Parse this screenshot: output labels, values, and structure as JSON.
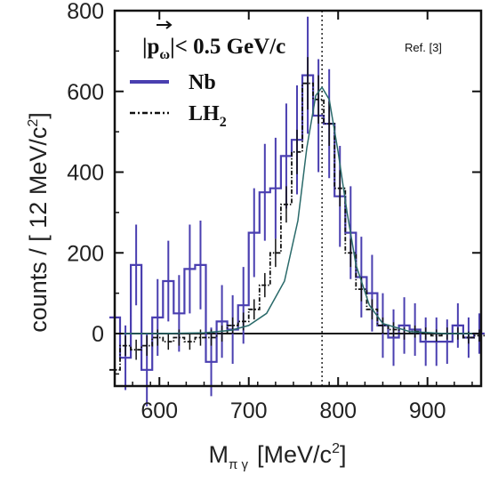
{
  "chart_data": {
    "type": "line",
    "xlabel": "M",
    "xlabel_sub": "π γ",
    "xlabel_unit_pre": "[MeV/c",
    "xlabel_unit_sup": "2",
    "xlabel_unit_post": "]",
    "ylabel": "counts / [ 12 MeV/c",
    "ylabel_sup": "2",
    "ylabel_post": "]",
    "xlim": [
      550,
      960
    ],
    "ylim": [
      -130,
      800
    ],
    "xticks": [
      600,
      700,
      800,
      900
    ],
    "yticks": [
      0,
      200,
      400,
      600,
      800
    ],
    "x_tick_labels": [
      "600",
      "700",
      "800",
      "900"
    ],
    "y_tick_labels": [
      "0",
      "200",
      "400",
      "600",
      "800"
    ],
    "zero_line": true,
    "vline_x": 782,
    "legend_position": "top-left",
    "annotation": {
      "text_pre": "|p",
      "text_sub": "ω",
      "text_post": "|< 0.5 GeV/c"
    },
    "ref_label": "Ref. [3]",
    "series": [
      {
        "name": "Nb",
        "color": "#4a3fb0",
        "style": "histogram",
        "x": [
          550,
          562,
          574,
          586,
          598,
          610,
          622,
          634,
          646,
          658,
          670,
          682,
          694,
          706,
          718,
          730,
          742,
          754,
          766,
          778,
          790,
          802,
          814,
          826,
          838,
          850,
          862,
          874,
          886,
          898,
          910,
          922,
          934,
          946,
          958
        ],
        "y": [
          40,
          -60,
          170,
          -90,
          40,
          130,
          50,
          160,
          170,
          -70,
          30,
          10,
          70,
          250,
          350,
          360,
          440,
          480,
          640,
          540,
          520,
          340,
          250,
          140,
          100,
          20,
          -10,
          20,
          10,
          -20,
          -20,
          -20,
          20,
          -10,
          0
        ],
        "err": [
          90,
          80,
          100,
          90,
          95,
          100,
          95,
          110,
          110,
          85,
          90,
          85,
          95,
          110,
          120,
          125,
          130,
          135,
          145,
          140,
          135,
          125,
          115,
          100,
          95,
          80,
          70,
          70,
          65,
          60,
          60,
          55,
          55,
          50,
          50
        ]
      },
      {
        "name": "LH",
        "name_sub": "2",
        "color": "#111111",
        "style": "dash-dot",
        "x": [
          550,
          562,
          574,
          586,
          598,
          610,
          622,
          634,
          646,
          658,
          670,
          682,
          694,
          706,
          718,
          730,
          742,
          754,
          766,
          778,
          790,
          802,
          814,
          826,
          838,
          850,
          862,
          874,
          886,
          898,
          910,
          922,
          934,
          946,
          958
        ],
        "y": [
          -90,
          -30,
          -40,
          -30,
          -10,
          -20,
          -10,
          -20,
          -10,
          -10,
          0,
          20,
          30,
          60,
          120,
          200,
          320,
          450,
          620,
          580,
          520,
          360,
          200,
          110,
          60,
          20,
          10,
          0,
          5,
          0,
          -5,
          0,
          0,
          -10,
          -5
        ],
        "err": [
          30,
          25,
          25,
          25,
          20,
          20,
          20,
          20,
          20,
          20,
          20,
          20,
          22,
          25,
          30,
          35,
          45,
          55,
          65,
          60,
          55,
          45,
          35,
          30,
          25,
          20,
          18,
          15,
          15,
          15,
          15,
          15,
          15,
          15,
          15
        ]
      },
      {
        "name": "",
        "color": "#2a6a6a",
        "style": "fit-curve",
        "x": [
          550,
          600,
          650,
          680,
          700,
          720,
          740,
          755,
          765,
          775,
          782,
          790,
          800,
          810,
          820,
          835,
          850,
          880,
          920,
          960
        ],
        "y": [
          0,
          0,
          2,
          8,
          20,
          50,
          130,
          280,
          460,
          590,
          610,
          580,
          450,
          300,
          170,
          70,
          25,
          5,
          0,
          0
        ]
      }
    ]
  }
}
